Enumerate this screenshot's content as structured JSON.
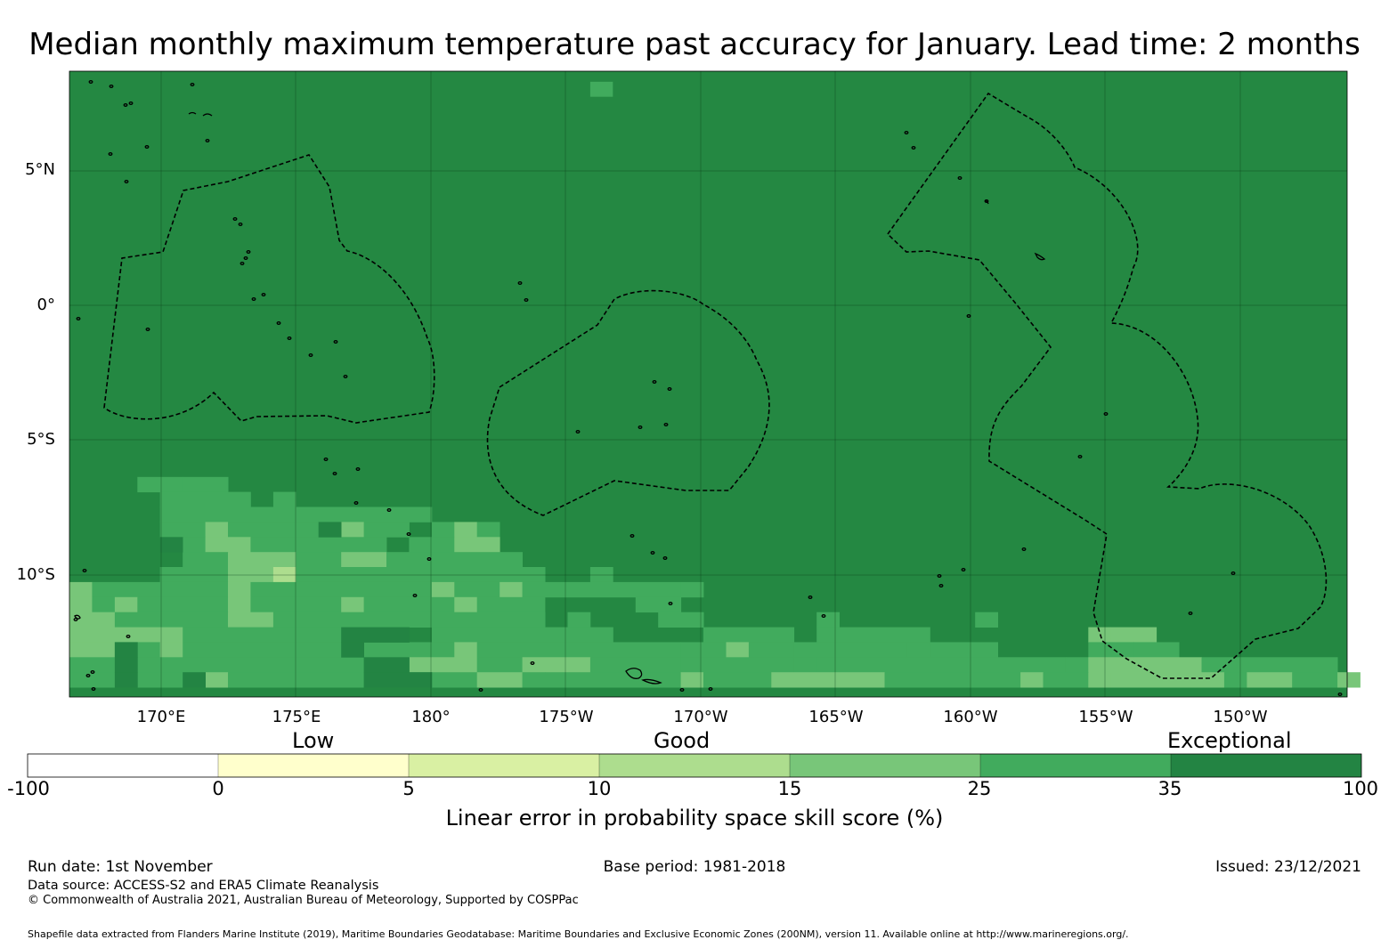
{
  "title": "Median monthly maximum temperature past accuracy for January. Lead time: 2 months",
  "map": {
    "background_color": "#248842",
    "lon_ticks": [
      "170°E",
      "175°E",
      "180°",
      "175°W",
      "170°W",
      "165°W",
      "160°W",
      "155°W",
      "150°W"
    ],
    "lat_ticks": [
      "5°N",
      "0°",
      "5°S",
      "10°S"
    ],
    "score_colors": {
      "c0": "#ffffcc",
      "c5": "#d9f0a3",
      "c10": "#addd8e",
      "c15": "#78c679",
      "c25": "#41ab5d",
      "c35": "#238443"
    }
  },
  "colorbar": {
    "categories": [
      "Low",
      "Good",
      "Exceptional"
    ],
    "ticks": [
      "-100",
      "0",
      "5",
      "10",
      "15",
      "25",
      "35",
      "100"
    ],
    "colors": [
      "#ffffff",
      "#ffffcc",
      "#d9f0a3",
      "#addd8e",
      "#78c679",
      "#41ab5d",
      "#238443"
    ],
    "label": "Linear error in probability space skill score (%)"
  },
  "footer": {
    "run_date": "Run date: 1st November",
    "base_period": "Base period: 1981-2018",
    "issued": "Issued: 23/12/2021",
    "data_source": "Data source: ACCESS-S2 and ERA5 Climate Reanalysis",
    "copyright": "© Commonwealth of Australia 2021, Australian Bureau of Meteorology, Supported by COSPPac",
    "shapefile": "Shapefile data extracted from Flanders Marine Institute (2019), Maritime Boundaries Geodatabase: Maritime Boundaries and Exclusive Economic Zones (200NM), version 11. Available online at http://www.marineregions.org/."
  }
}
